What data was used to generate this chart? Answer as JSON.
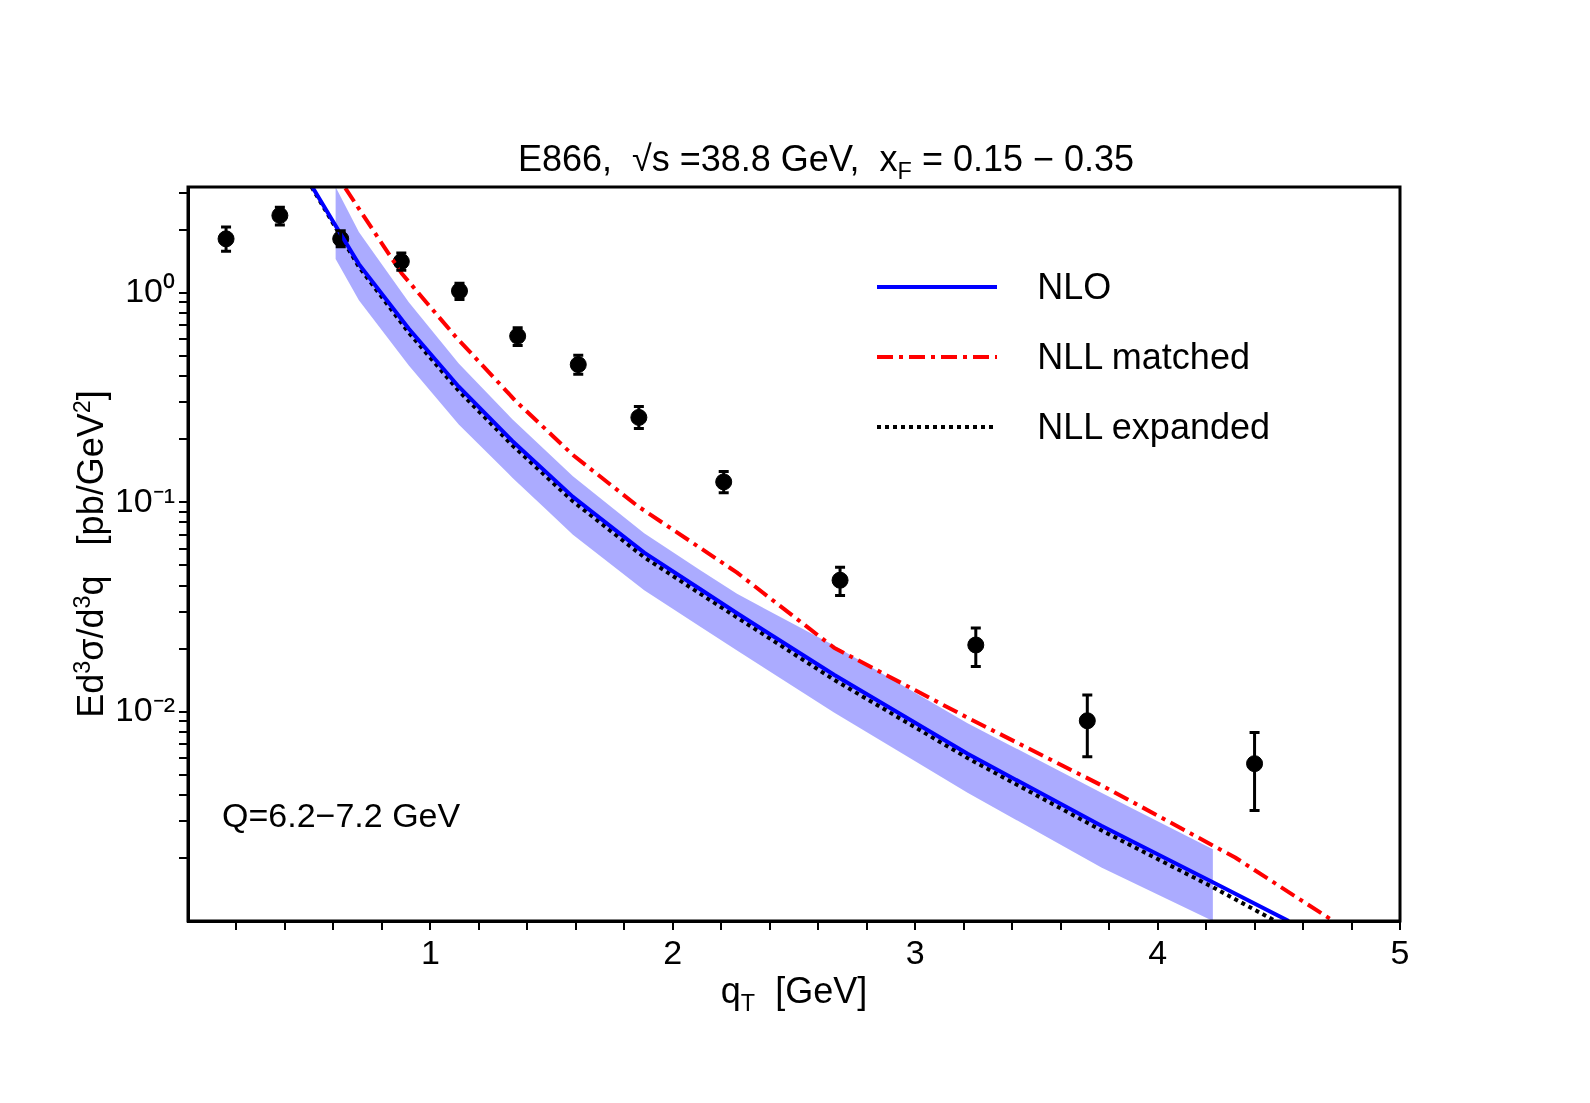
{
  "chart_data": {
    "type": "line",
    "title": "E866,  √s =38.8 GeV,  x$_{F}$ = 0.15 − 0.35",
    "xlabel": "q$_{T}$  [GeV]",
    "ylabel": "Ed$^{3}$σ/d$^{3}$q   [pb/GeV$^{2}$]",
    "annotations": [
      "Q=6.2−7.2 GeV"
    ],
    "log": "y",
    "legend": "top right",
    "grid": false,
    "xlim": [
      0,
      5
    ],
    "xticks": [
      {
        "value": 0.2,
        "label": null
      },
      {
        "value": 0.4,
        "label": null
      },
      {
        "value": 0.6,
        "label": null
      },
      {
        "value": 0.8,
        "label": null
      },
      1,
      {
        "value": 1.2,
        "label": null
      },
      {
        "value": 1.4,
        "label": null
      },
      {
        "value": 1.6,
        "label": null
      },
      {
        "value": 1.8,
        "label": null
      },
      2,
      {
        "value": 2.2,
        "label": null
      },
      {
        "value": 2.4,
        "label": null
      },
      {
        "value": 2.6,
        "label": null
      },
      {
        "value": 2.8,
        "label": null
      },
      3,
      {
        "value": 3.2,
        "label": null
      },
      {
        "value": 3.4,
        "label": null
      },
      {
        "value": 3.6,
        "label": null
      },
      {
        "value": 3.8,
        "label": null
      },
      4,
      {
        "value": 4.2,
        "label": null
      },
      {
        "value": 4.4,
        "label": null
      },
      {
        "value": 4.6,
        "label": null
      },
      {
        "value": 4.8,
        "label": null
      },
      5
    ],
    "ylim": [
      0.001,
      3.2
    ],
    "yticks": [
      {
        "value": 0.002,
        "label": null
      },
      {
        "value": 0.003,
        "label": null
      },
      {
        "value": 0.004,
        "label": null
      },
      {
        "value": 0.005,
        "label": null
      },
      {
        "value": 0.006,
        "label": null
      },
      {
        "value": 0.007,
        "label": null
      },
      {
        "value": 0.008,
        "label": null
      },
      {
        "value": 0.009,
        "label": null
      },
      {
        "value": 0.01,
        "label": "10⁻²"
      },
      {
        "value": 0.02,
        "label": null
      },
      {
        "value": 0.03,
        "label": null
      },
      {
        "value": 0.04,
        "label": null
      },
      {
        "value": 0.05,
        "label": null
      },
      {
        "value": 0.06,
        "label": null
      },
      {
        "value": 0.07,
        "label": null
      },
      {
        "value": 0.08,
        "label": null
      },
      {
        "value": 0.09,
        "label": null
      },
      {
        "value": 0.1,
        "label": "10⁻¹"
      },
      {
        "value": 0.2,
        "label": null
      },
      {
        "value": 0.3,
        "label": null
      },
      {
        "value": 0.4,
        "label": null
      },
      {
        "value": 0.5,
        "label": null
      },
      {
        "value": 0.6,
        "label": null
      },
      {
        "value": 0.7,
        "label": null
      },
      {
        "value": 0.8,
        "label": null
      },
      {
        "value": 0.9,
        "label": null
      },
      {
        "value": 1,
        "label": "10⁰"
      },
      {
        "value": 2,
        "label": null
      },
      {
        "value": 3,
        "label": null
      }
    ],
    "series": [
      {
        "name": "NLO",
        "color": "#0000ff",
        "line_style": "solid",
        "marker": "none",
        "x": [
          0.513,
          0.609,
          0.705,
          0.911,
          1.117,
          1.338,
          1.588,
          1.882,
          2.112,
          2.265,
          2.665,
          3.216,
          3.768,
          4.228,
          4.541
        ],
        "values": [
          3.2,
          2.09,
          1.37,
          0.673,
          0.356,
          0.196,
          0.106,
          0.0574,
          0.0385,
          0.0295,
          0.015,
          0.00629,
          0.00285,
          0.00153,
          0.001
        ],
        "upper": [
          null,
          3.2,
          1.95,
          0.9,
          0.46,
          0.249,
          0.133,
          0.071,
          0.0475,
          0.0365,
          0.0207,
          0.0088,
          0.0041,
          0.0022,
          null
        ],
        "lower": [
          null,
          1.45,
          0.92,
          0.45,
          0.235,
          0.131,
          0.07,
          0.038,
          0.0255,
          0.0196,
          0.0099,
          0.0041,
          0.0018,
          0.001,
          null
        ]
      },
      {
        "name": "NLL matched",
        "color": "#ff0000",
        "line_style": "dashdot",
        "marker": "none",
        "x": [
          0.649,
          0.881,
          1.102,
          1.352,
          1.588,
          1.853,
          2.265,
          2.665,
          3.216,
          3.768,
          4.32,
          4.725
        ],
        "values": [
          3.16,
          1.24,
          0.621,
          0.304,
          0.168,
          0.0962,
          0.0461,
          0.0202,
          0.00935,
          0.00445,
          0.00201,
          0.001
        ]
      },
      {
        "name": "NLL expanded",
        "color": "#000000",
        "line_style": "dotted",
        "marker": "none",
        "x": [
          0.51,
          0.705,
          0.911,
          1.117,
          1.338,
          1.588,
          1.882,
          2.112,
          2.665,
          3.216,
          3.768,
          4.228,
          4.486
        ],
        "values": [
          3.2,
          1.33,
          0.645,
          0.34,
          0.187,
          0.101,
          0.0546,
          0.0366,
          0.0142,
          0.006,
          0.00271,
          0.00145,
          0.001
        ]
      },
      {
        "type": "scatter",
        "color": "#000000",
        "marker": "circle",
        "x": [
          0.157,
          0.379,
          0.63,
          0.88,
          1.12,
          1.36,
          1.61,
          1.86,
          2.21,
          2.69,
          3.25,
          3.71,
          4.4
        ],
        "values": [
          1.81,
          2.34,
          1.81,
          1.41,
          1.02,
          0.621,
          0.454,
          0.254,
          0.125,
          0.0424,
          0.0208,
          0.00904,
          0.00564
        ],
        "errors": [
          [
            1.58,
            2.06
          ],
          [
            2.11,
            2.56
          ],
          [
            1.66,
            1.98
          ],
          [
            1.28,
            1.55
          ],
          [
            0.93,
            1.11
          ],
          [
            0.56,
            0.681
          ],
          [
            0.408,
            0.503
          ],
          [
            0.225,
            0.286
          ],
          [
            0.111,
            0.14
          ],
          [
            0.0358,
            0.0489
          ],
          [
            0.0164,
            0.0251
          ],
          [
            0.00608,
            0.012
          ],
          [
            0.00337,
            0.00794
          ]
        ]
      }
    ]
  }
}
